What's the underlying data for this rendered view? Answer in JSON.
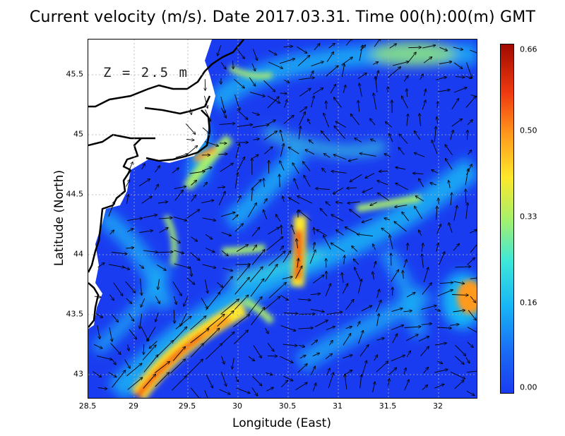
{
  "title": "Current velocity (m/s). Date 2017.03.31. Time 00(h):00(m) GMT",
  "depth_label": "Z = 2.5 m",
  "axes": {
    "xlabel": "Longitude (East)",
    "ylabel": "Latitude (North)",
    "x_ticks": [
      "28.5",
      "29",
      "29.5",
      "30",
      "30.5",
      "31",
      "31.5",
      "32"
    ],
    "y_ticks": [
      "45.5",
      "45",
      "44.5",
      "44",
      "43.5",
      "43"
    ],
    "x_range": [
      28.5,
      32.4
    ],
    "y_range": [
      42.8,
      45.8
    ],
    "grid": true
  },
  "colorbar": {
    "ticks": [
      "0.66",
      "0.50",
      "0.33",
      "0.16",
      "0.00"
    ],
    "min": 0.0,
    "max": 0.66,
    "colors": [
      "#1a3cf0",
      "#17b6f5",
      "#a8f06a",
      "#ffe82a",
      "#f03a10",
      "#a00a00"
    ]
  },
  "map": {
    "variable": "current velocity",
    "units": "m/s",
    "land_color": "#ffffff",
    "coast_color": "#000000",
    "vector_field": "black arrows"
  }
}
